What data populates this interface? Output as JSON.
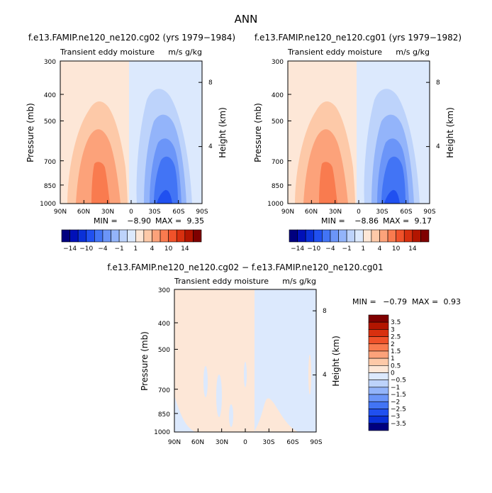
{
  "figure": {
    "title": "ANN"
  },
  "chart_data": [
    {
      "type": "heatmap",
      "title": "f.e13.FAMIP.ne120_ne120.cg02 (yrs 1979−1984)",
      "subtitle": "Transient eddy moisture",
      "units": "m/s g/kg",
      "ylabel": "Pressure (mb)",
      "y2label": "Height (km)",
      "x_ticks": [
        "90N",
        "60N",
        "30N",
        "0",
        "30S",
        "60S",
        "90S"
      ],
      "y_ticks": [
        "300",
        "400",
        "500",
        "700",
        "850",
        "1000"
      ],
      "y2_ticks": [
        "8",
        "4"
      ],
      "ylim": [
        1000,
        300
      ],
      "y_scale": "log",
      "min_label": "MIN =",
      "min": "−8.90",
      "max_label": "MAX =",
      "max": "9.35"
    },
    {
      "type": "heatmap",
      "title": "f.e13.FAMIP.ne120_ne120.cg01 (yrs 1979−1982)",
      "subtitle": "Transient eddy moisture",
      "units": "m/s g/kg",
      "ylabel": "Pressure (mb)",
      "y2label": "Height (km)",
      "x_ticks": [
        "90N",
        "60N",
        "30N",
        "0",
        "30S",
        "60S",
        "90S"
      ],
      "y_ticks": [
        "300",
        "400",
        "500",
        "700",
        "850",
        "1000"
      ],
      "y2_ticks": [
        "8",
        "4"
      ],
      "ylim": [
        1000,
        300
      ],
      "y_scale": "log",
      "min_label": "MIN =",
      "min": "−8.86",
      "max_label": "MAX =",
      "max": "9.17"
    },
    {
      "type": "heatmap",
      "title": "f.e13.FAMIP.ne120_ne120.cg02 − f.e13.FAMIP.ne120_ne120.cg01",
      "subtitle": "Transient eddy moisture",
      "units": "m/s g/kg",
      "ylabel": "Pressure (mb)",
      "y2label": "Height (km)",
      "x_ticks": [
        "90N",
        "60N",
        "30N",
        "0",
        "30S",
        "60S",
        "90S"
      ],
      "y_ticks": [
        "300",
        "400",
        "500",
        "700",
        "850",
        "1000"
      ],
      "y2_ticks": [
        "8",
        "4"
      ],
      "ylim": [
        1000,
        300
      ],
      "y_scale": "log",
      "min_label": "MIN =",
      "min": "−0.79",
      "max_label": "MAX =",
      "max": "0.93"
    }
  ],
  "colorbar_top": {
    "labels": [
      "−14",
      "−10",
      "−4",
      "−1",
      "1",
      "4",
      "10",
      "14"
    ],
    "colors": [
      "#00007f",
      "#0010b8",
      "#0a30d8",
      "#2050f0",
      "#4274f5",
      "#6b95f8",
      "#93b4fa",
      "#bdd3fb",
      "#dce9fd",
      "#fde7d7",
      "#fdc9a8",
      "#fca27a",
      "#f97b4f",
      "#f0522a",
      "#d8300f",
      "#b31500",
      "#7f0000"
    ]
  },
  "colorbar_diff": {
    "labels": [
      "3.5",
      "3",
      "2.5",
      "2",
      "1.5",
      "1",
      "0.5",
      "0",
      "−0.5",
      "−1",
      "−1.5",
      "−2",
      "−2.5",
      "−3",
      "−3.5"
    ],
    "colors": [
      "#7f0000",
      "#b31500",
      "#d8300f",
      "#f0522a",
      "#f97b4f",
      "#fca27a",
      "#fdc9a8",
      "#fde7d7",
      "#dce9fd",
      "#bdd3fb",
      "#93b4fa",
      "#6b95f8",
      "#4274f5",
      "#2050f0",
      "#0a30d8",
      "#00007f"
    ]
  },
  "colors": {
    "pos1": "#fde7d7",
    "pos2": "#fdc9a8",
    "pos3": "#fca27a",
    "pos4": "#f97b4f",
    "neg1": "#dce9fd",
    "neg2": "#bdd3fb",
    "neg3": "#93b4fa",
    "neg4": "#6b95f8",
    "neg5": "#4274f5",
    "neg6": "#2050f0"
  }
}
